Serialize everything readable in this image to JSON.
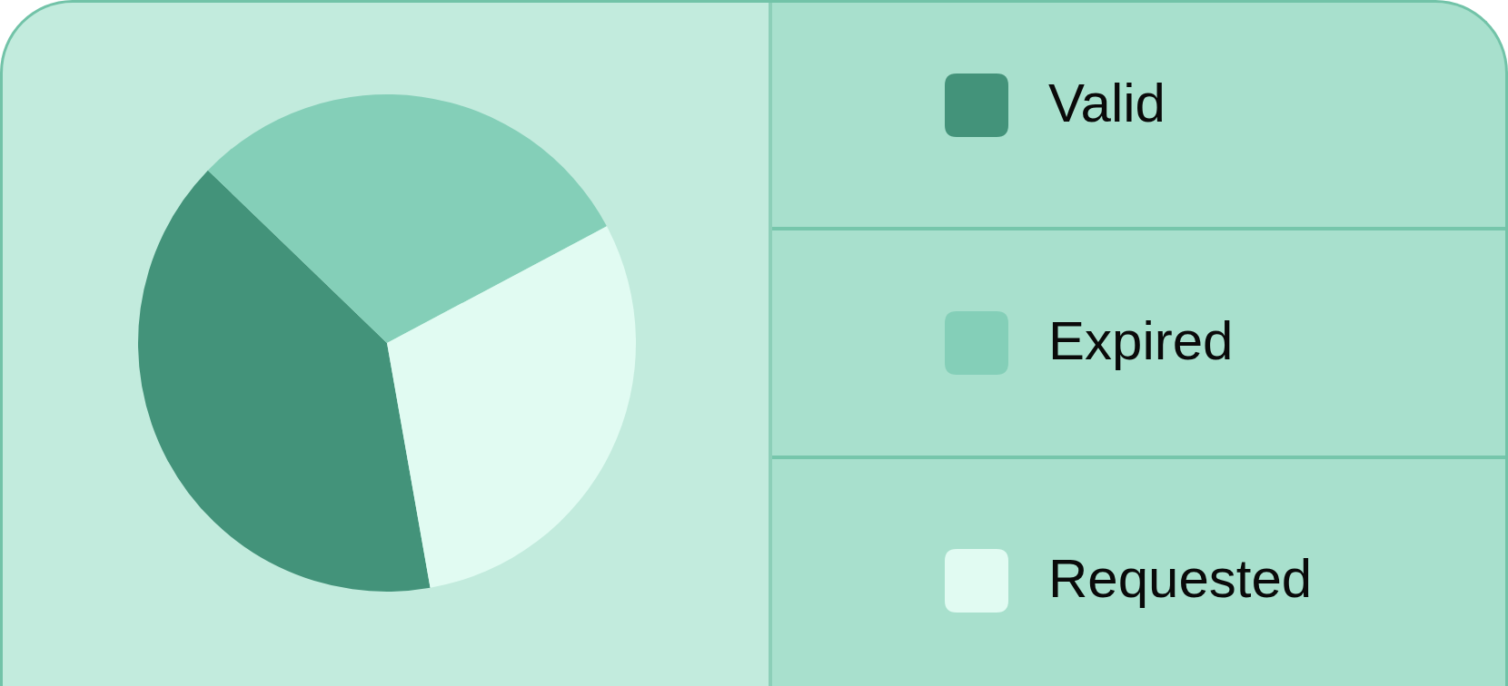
{
  "chart_data": {
    "type": "pie",
    "categories": [
      "Valid",
      "Expired",
      "Requested"
    ],
    "values": [
      40,
      30,
      30
    ],
    "colors": [
      "#43937a",
      "#84cfb8",
      "#e1fbf2"
    ],
    "legend": "right"
  }
}
